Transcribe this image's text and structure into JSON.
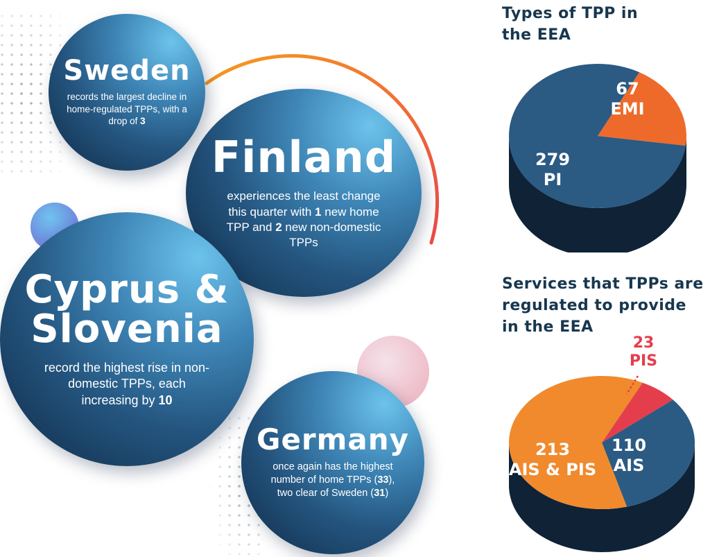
{
  "bubbles": {
    "sweden": {
      "name": "Sweden",
      "desc_before": "records the largest decline in home-regulated TPPs, with a drop of ",
      "desc_value": "3",
      "desc_after": ""
    },
    "finland": {
      "name": "Finland",
      "desc_before": "experiences the least change this quarter with ",
      "desc_value": "1",
      "desc_middle": " new home TPP and ",
      "desc_value2": "2",
      "desc_after": " new non-domestic TPPs"
    },
    "cyprus": {
      "name_line1": "Cyprus &",
      "name_line2": "Slovenia",
      "desc_before": "record the highest rise in non-domestic TPPs, each increasing by ",
      "desc_value": "10",
      "desc_after": ""
    },
    "germany": {
      "name": "Germany",
      "desc_before": "once again has the highest number of home TPPs (",
      "desc_value": "33",
      "desc_middle": "), two clear of Sweden (",
      "desc_value2": "31",
      "desc_after": ")"
    }
  },
  "chart_data": [
    {
      "type": "pie",
      "title": "Types of TPP in the EEA",
      "slices": [
        {
          "label": "EMI",
          "value": 67,
          "color": "#ee6a2b"
        },
        {
          "label": "PI",
          "value": 279,
          "color": "#2b5a83"
        }
      ]
    },
    {
      "type": "pie",
      "title": "Services that TPPs are regulated to provide in the EEA",
      "slices": [
        {
          "label": "PIS",
          "value": 23,
          "color": "#e43e4d"
        },
        {
          "label": "AIS",
          "value": 110,
          "color": "#2b5a83"
        },
        {
          "label": "AIS & PIS",
          "value": 213,
          "color": "#f08a2c"
        }
      ]
    }
  ]
}
